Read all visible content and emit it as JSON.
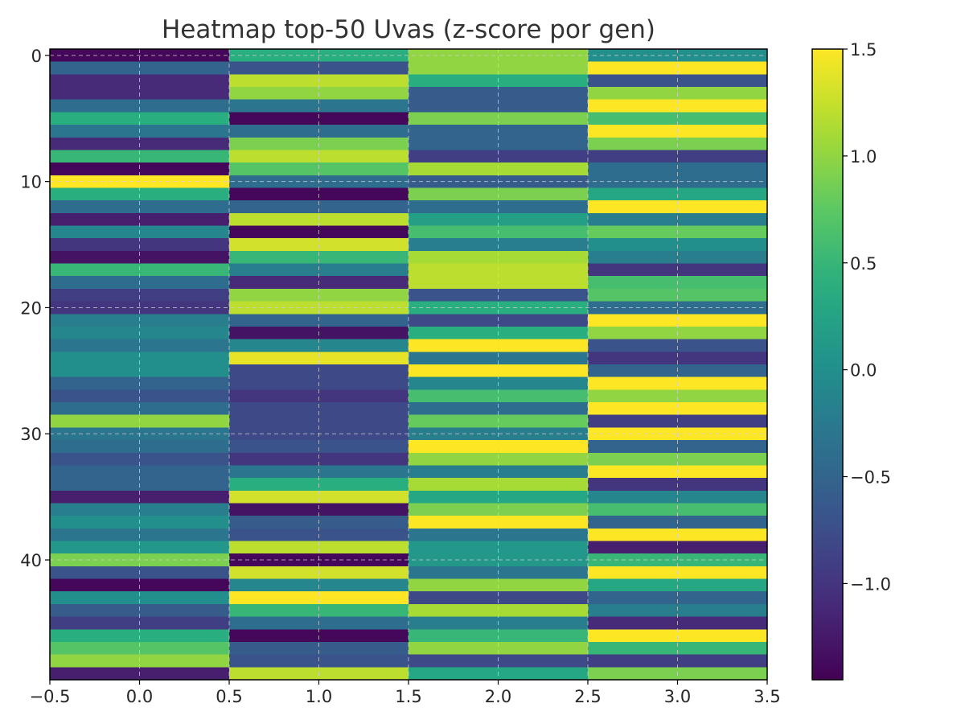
{
  "chart_data": {
    "type": "heatmap",
    "title": "Heatmap top-50 Uvas (z-score por gen)",
    "xlabel": "",
    "ylabel": "",
    "n_rows": 50,
    "n_cols": 4,
    "xlim": [
      -0.5,
      3.5
    ],
    "ylim": [
      49.5,
      -0.5
    ],
    "x_ticks": [
      -0.5,
      0.0,
      0.5,
      1.0,
      1.5,
      2.0,
      2.5,
      3.0,
      3.5
    ],
    "x_tick_labels": [
      "−0.5",
      "0.0",
      "0.5",
      "1.0",
      "1.5",
      "2.0",
      "2.5",
      "3.0",
      "3.5"
    ],
    "y_ticks": [
      0,
      10,
      20,
      30,
      40
    ],
    "y_tick_labels": [
      "0",
      "10",
      "20",
      "30",
      "40"
    ],
    "grid": true,
    "colormap": "viridis",
    "vmin": -1.45,
    "vmax": 1.5,
    "colorbar_ticks": [
      1.5,
      1.0,
      0.5,
      0.0,
      -0.5,
      -1.0
    ],
    "colorbar_tick_labels": [
      "1.5",
      "1.0",
      "0.5",
      "0.0",
      "−0.5",
      "−1.0"
    ],
    "values": [
      [
        -1.4,
        0.4,
        1.0,
        0.0
      ],
      [
        -0.5,
        -0.7,
        1.0,
        1.5
      ],
      [
        -1.1,
        1.2,
        0.4,
        -0.7
      ],
      [
        -1.1,
        1.0,
        -0.6,
        1.0
      ],
      [
        -0.4,
        -0.3,
        -0.6,
        1.5
      ],
      [
        0.4,
        -1.4,
        0.9,
        0.6
      ],
      [
        -0.3,
        -0.4,
        -0.5,
        1.5
      ],
      [
        -1.1,
        0.9,
        -0.5,
        0.9
      ],
      [
        0.5,
        1.2,
        -0.9,
        -0.9
      ],
      [
        -1.4,
        0.7,
        1.1,
        -0.4
      ],
      [
        1.5,
        -0.4,
        -0.6,
        -0.4
      ],
      [
        0.4,
        -1.4,
        0.9,
        0.3
      ],
      [
        -0.4,
        -0.5,
        -0.4,
        1.5
      ],
      [
        -1.2,
        1.2,
        0.2,
        -0.2
      ],
      [
        -0.1,
        -1.4,
        0.6,
        0.8
      ],
      [
        -1.0,
        1.3,
        -0.2,
        0.0
      ],
      [
        -1.3,
        0.5,
        1.1,
        -0.2
      ],
      [
        0.5,
        -0.2,
        1.2,
        -1.0
      ],
      [
        -0.4,
        -1.1,
        1.2,
        0.6
      ],
      [
        -0.9,
        1.0,
        -0.7,
        0.7
      ],
      [
        -1.0,
        1.2,
        0.4,
        -0.4
      ],
      [
        -0.2,
        -0.5,
        -0.8,
        1.5
      ],
      [
        -0.1,
        -1.3,
        0.4,
        1.0
      ],
      [
        -0.3,
        -0.1,
        1.5,
        -0.7
      ],
      [
        0.0,
        1.4,
        -0.3,
        -1.0
      ],
      [
        0.0,
        -0.8,
        1.5,
        -0.5
      ],
      [
        -0.5,
        -0.8,
        -0.1,
        1.5
      ],
      [
        -0.7,
        -1.0,
        0.6,
        1.0
      ],
      [
        -0.4,
        -0.8,
        -0.4,
        1.5
      ],
      [
        1.0,
        -0.8,
        0.8,
        -0.9
      ],
      [
        -0.3,
        -0.8,
        -0.2,
        1.5
      ],
      [
        -0.4,
        -0.7,
        1.5,
        -0.5
      ],
      [
        -0.7,
        -1.0,
        1.0,
        0.9
      ],
      [
        -0.5,
        -0.3,
        -0.2,
        1.5
      ],
      [
        -0.5,
        0.4,
        1.1,
        -1.0
      ],
      [
        -1.2,
        1.3,
        0.3,
        -0.1
      ],
      [
        -0.2,
        -1.3,
        0.9,
        0.6
      ],
      [
        0.0,
        -0.6,
        1.5,
        -0.5
      ],
      [
        -0.3,
        -0.7,
        -0.3,
        1.5
      ],
      [
        0.1,
        1.2,
        0.1,
        -1.2
      ],
      [
        0.9,
        -1.4,
        0.1,
        0.5
      ],
      [
        -0.7,
        1.3,
        -0.3,
        1.5
      ],
      [
        -1.4,
        -0.1,
        1.0,
        0.3
      ],
      [
        0.0,
        1.5,
        -0.8,
        -0.5
      ],
      [
        -0.6,
        0.5,
        1.1,
        -0.2
      ],
      [
        -0.9,
        -0.4,
        -0.2,
        -1.1
      ],
      [
        0.4,
        -1.4,
        0.5,
        1.5
      ],
      [
        0.7,
        -0.6,
        1.0,
        0.5
      ],
      [
        1.0,
        -0.7,
        -0.8,
        -0.9
      ],
      [
        -1.2,
        1.2,
        0.3,
        0.9
      ]
    ]
  }
}
